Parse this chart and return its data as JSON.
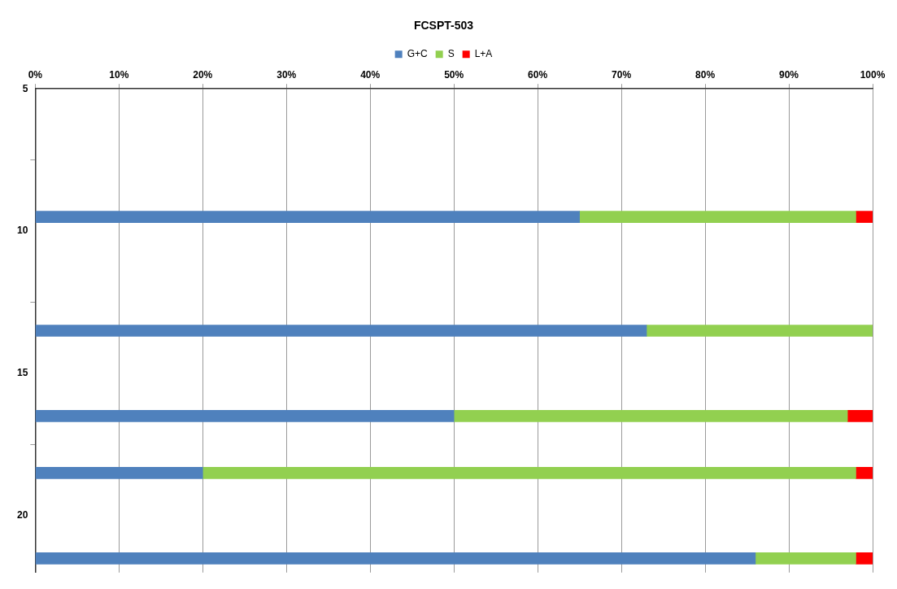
{
  "chart_data": {
    "type": "bar",
    "title": "FCSPT-503",
    "orientation": "horizontal",
    "stacked": true,
    "x": [
      9.5,
      13.5,
      16.5,
      18.5,
      21.5
    ],
    "series": [
      {
        "name": "G+C",
        "color": "#4f81bd",
        "values": [
          65,
          73,
          50,
          20,
          86
        ]
      },
      {
        "name": "S",
        "color": "#92d050",
        "values": [
          33,
          27,
          47,
          78,
          12
        ]
      },
      {
        "name": "L+A",
        "color": "#ff0000",
        "values": [
          2,
          0,
          3,
          2,
          2
        ]
      }
    ],
    "xlim": [
      0,
      100
    ],
    "xticks": [
      {
        "value": 0,
        "label": "0%"
      },
      {
        "value": 10,
        "label": "10%"
      },
      {
        "value": 20,
        "label": "20%"
      },
      {
        "value": 30,
        "label": "30%"
      },
      {
        "value": 40,
        "label": "40%"
      },
      {
        "value": 50,
        "label": "50%"
      },
      {
        "value": 60,
        "label": "60%"
      },
      {
        "value": 70,
        "label": "70%"
      },
      {
        "value": 80,
        "label": "80%"
      },
      {
        "value": 90,
        "label": "90%"
      },
      {
        "value": 100,
        "label": "100%"
      }
    ],
    "ylim": [
      22,
      5
    ],
    "yticks": [
      5,
      10,
      15,
      20
    ],
    "grid": "x",
    "legend": "top"
  }
}
